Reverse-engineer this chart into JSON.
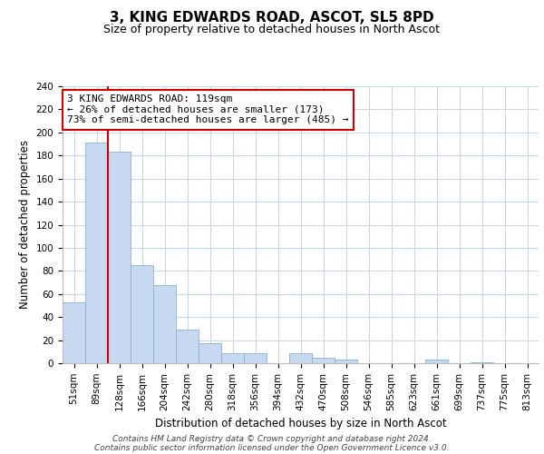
{
  "title": "3, KING EDWARDS ROAD, ASCOT, SL5 8PD",
  "subtitle": "Size of property relative to detached houses in North Ascot",
  "xlabel": "Distribution of detached houses by size in North Ascot",
  "ylabel": "Number of detached properties",
  "bar_labels": [
    "51sqm",
    "89sqm",
    "128sqm",
    "166sqm",
    "204sqm",
    "242sqm",
    "280sqm",
    "318sqm",
    "356sqm",
    "394sqm",
    "432sqm",
    "470sqm",
    "508sqm",
    "546sqm",
    "585sqm",
    "623sqm",
    "661sqm",
    "699sqm",
    "737sqm",
    "775sqm",
    "813sqm"
  ],
  "bar_values": [
    53,
    191,
    183,
    85,
    68,
    29,
    17,
    9,
    9,
    0,
    9,
    5,
    3,
    0,
    0,
    0,
    3,
    0,
    1,
    0,
    0
  ],
  "bar_color": "#c6d9f0",
  "bar_edge_color": "#8ab0d4",
  "vline_x": 1.5,
  "vline_color": "#cc0000",
  "annotation_line1": "3 KING EDWARDS ROAD: 119sqm",
  "annotation_line2": "← 26% of detached houses are smaller (173)",
  "annotation_line3": "73% of semi-detached houses are larger (485) →",
  "annotation_box_color": "#ffffff",
  "annotation_box_edge": "#cc0000",
  "ylim": [
    0,
    240
  ],
  "yticks": [
    0,
    20,
    40,
    60,
    80,
    100,
    120,
    140,
    160,
    180,
    200,
    220,
    240
  ],
  "footer_line1": "Contains HM Land Registry data © Crown copyright and database right 2024.",
  "footer_line2": "Contains public sector information licensed under the Open Government Licence v3.0.",
  "background_color": "#ffffff",
  "grid_color": "#c8d8e8",
  "title_fontsize": 11,
  "subtitle_fontsize": 9,
  "label_fontsize": 8.5,
  "tick_fontsize": 7.5,
  "footer_fontsize": 6.5,
  "ann_fontsize": 8
}
